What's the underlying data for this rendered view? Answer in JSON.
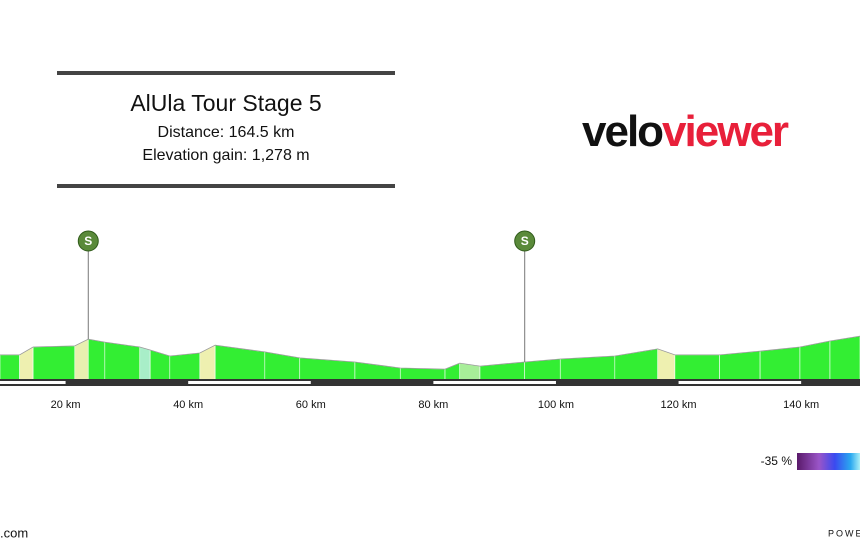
{
  "header": {
    "title": "AlUla Tour Stage 5",
    "distance": "Distance: 164.5 km",
    "elevation_gain": "Elevation gain: 1,278 m"
  },
  "logo": {
    "part1": "velo",
    "part2": "viewer"
  },
  "chart_data": {
    "type": "area",
    "x": [
      9.3,
      12.5,
      14.7,
      21.5,
      23.7,
      26.4,
      32.1,
      33.8,
      37.0,
      41.9,
      44.4,
      52.5,
      58.2,
      67.2,
      74.6,
      81.9,
      84.3,
      87.6,
      94.9,
      100.7,
      109.6,
      116.6,
      119.4,
      126.7,
      133.3,
      139.8,
      144.7,
      149.6
    ],
    "values": [
      667,
      667,
      688,
      691,
      709,
      701,
      688,
      680,
      664,
      672,
      693,
      675,
      659,
      648,
      632,
      629,
      645,
      637,
      648,
      656,
      664,
      683,
      667,
      667,
      677,
      688,
      704,
      717
    ],
    "segment_colors": [
      "#33ee33",
      "#eef0b0",
      "#33ee33",
      "#e8f0b0",
      "#33ee33",
      "#33ee33",
      "#a8eec8",
      "#33ee33",
      "#33ee33",
      "#eef0b0",
      "#33ee33",
      "#33ee33",
      "#33ee33",
      "#33ee33",
      "#33ee33",
      "#33ee33",
      "#a8ee99",
      "#33ee33",
      "#33ee33",
      "#33ee33",
      "#33ee33",
      "#eef0b0",
      "#33ee33",
      "#33ee33",
      "#33ee33",
      "#33ee33",
      "#33ee33"
    ],
    "ylim": [
      600,
      1000
    ],
    "xlim": [
      9.3,
      149.6
    ],
    "xticks": [
      {
        "value": 20,
        "label": "20 km"
      },
      {
        "value": 40,
        "label": "40 km"
      },
      {
        "value": 60,
        "label": "60 km"
      },
      {
        "value": 80,
        "label": "80 km"
      },
      {
        "value": 100,
        "label": "100 km"
      },
      {
        "value": 120,
        "label": "120 km"
      },
      {
        "value": 140,
        "label": "140 km"
      }
    ],
    "sprints": [
      {
        "x": 23.7,
        "label": "S"
      },
      {
        "x": 94.9,
        "label": "S"
      }
    ]
  },
  "legend": {
    "label": "-35 %"
  },
  "footer": {
    "left": ".com",
    "right": "POWE"
  }
}
